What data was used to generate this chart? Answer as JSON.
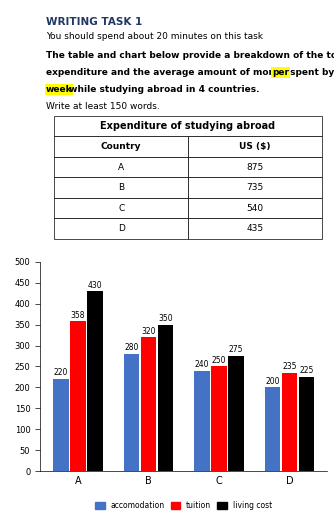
{
  "title_bold": "WRITING TASK 1",
  "subtitle": "You should spend about 20 minutes on this task",
  "description_normal": "The table and chart below provide a breakdown of the total\nexpenditureand the average amount of money spent by students ",
  "highlight_text": "per\nweek",
  "description_end": " while studying abroad in 4 countries.",
  "write_note": "Write at least 150 words.",
  "table_title": "Expenditure of studying abroad",
  "table_headers": [
    "Country",
    "US ($)"
  ],
  "table_rows": [
    [
      "A",
      "875"
    ],
    [
      "B",
      "735"
    ],
    [
      "C",
      "540"
    ],
    [
      "D",
      "435"
    ]
  ],
  "chart_categories": [
    "A",
    "B",
    "C",
    "D"
  ],
  "accomodation": [
    220,
    280,
    240,
    200
  ],
  "tuition": [
    358,
    320,
    250,
    235
  ],
  "living_cost": [
    430,
    350,
    275,
    225
  ],
  "bar_colors": [
    "#4472c4",
    "#ff0000",
    "#000000"
  ],
  "legend_labels": [
    "accomodation",
    "tuition",
    "living cost"
  ],
  "ylim": [
    0,
    500
  ],
  "yticks": [
    0,
    50,
    100,
    150,
    200,
    250,
    300,
    350,
    400,
    450,
    500
  ],
  "ylabel": "",
  "background_color": "#ffffff"
}
